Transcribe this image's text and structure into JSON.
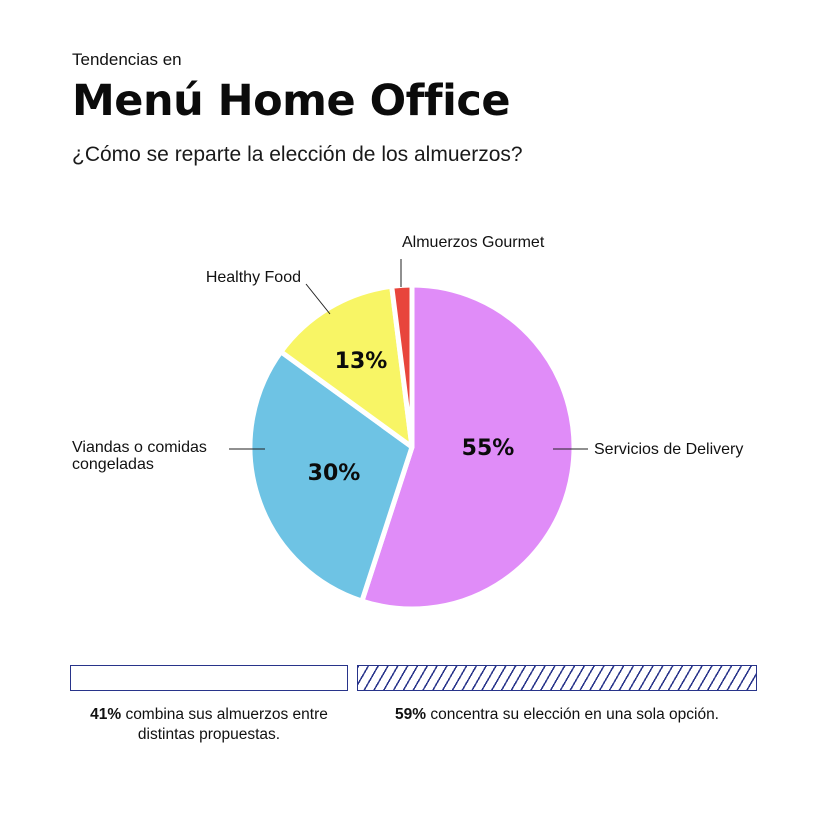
{
  "header": {
    "kicker": "Tendencias en",
    "title": "Menú Home Office",
    "subtitle": "¿Cómo se reparte la elección de los almuerzos?"
  },
  "chart_data": {
    "type": "pie",
    "title": "Menú Home Office",
    "subtitle": "¿Cómo se reparte la elección de los almuerzos?",
    "slices": [
      {
        "name": "Servicios de Delivery",
        "value": 55,
        "label": "55%",
        "color": "#e08cf8"
      },
      {
        "name": "Viandas o comidas congeladas",
        "value": 30,
        "label": "30%",
        "color": "#6ec3e4"
      },
      {
        "name": "Healthy Food",
        "value": 13,
        "label": "13%",
        "color": "#f8f565"
      },
      {
        "name": "Almuerzos Gourmet",
        "value": 2,
        "label": "",
        "color": "#e8453c"
      }
    ]
  },
  "summary": {
    "left": {
      "value": 41,
      "percent_label": "41%",
      "text": "combina sus almuerzos entre distintas propuestas."
    },
    "right": {
      "value": 59,
      "percent_label": "59%",
      "text": "concentra su elección en una sola opción."
    },
    "bar_color": "#28348a"
  }
}
